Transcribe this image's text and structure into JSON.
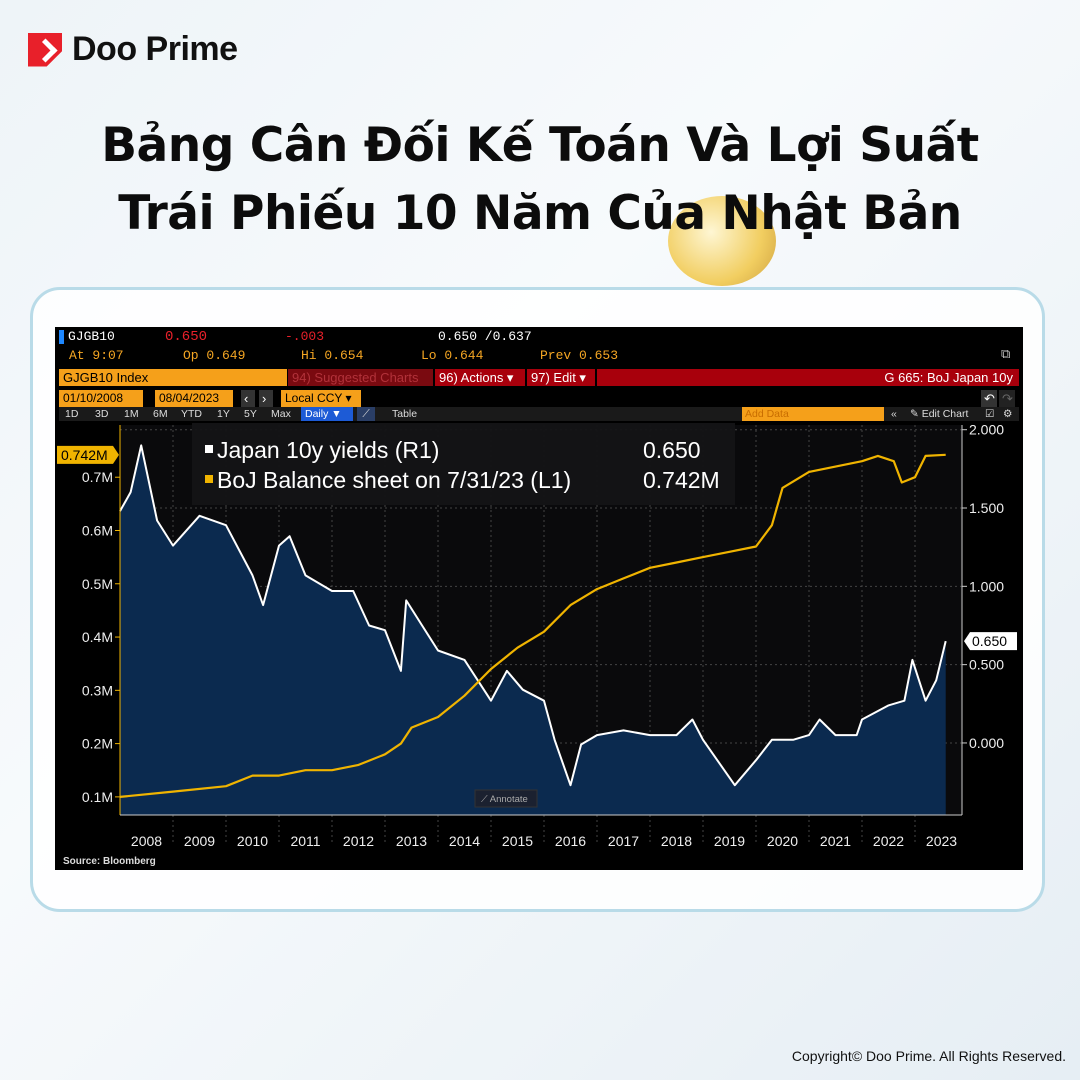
{
  "brand": {
    "name": "Doo Prime",
    "accent": "#e8202a"
  },
  "title": {
    "line1": "Bảng Cân Đối Kế Toán Và Lợi Suất",
    "line2": "Trái Phiếu 10 Năm Của Nhật Bản"
  },
  "terminal": {
    "ticker": "GJGB10",
    "last": "0.650",
    "change": "-.003",
    "bid_ask": "0.650 /0.637",
    "at": "At 9:07",
    "open": "Op 0.649",
    "high": "Hi 0.654",
    "low": "Lo 0.644",
    "prev": "Prev  0.653",
    "security": "GJGB10 Index",
    "suggested": "94) Suggested Charts",
    "actions": "96) Actions ▾",
    "edit": "97) Edit ▾",
    "chart_name": "G 665: BoJ Japan 10y",
    "start_date": "01/10/2008",
    "end_date": "08/04/2023",
    "currency": "Local CCY ▾",
    "periods": [
      "1D",
      "3D",
      "1M",
      "6M",
      "YTD",
      "1Y",
      "5Y",
      "Max"
    ],
    "frequency": "Daily ▼",
    "table": "Table",
    "add_data_placeholder": "Add Data",
    "edit_chart": "✎ Edit Chart",
    "annotate": "⟋ Annotate",
    "source": "Source: Bloomberg"
  },
  "chart_data": {
    "type": "line",
    "x_range": [
      2008.0,
      2023.9
    ],
    "xticks": [
      "2008",
      "2009",
      "2010",
      "2011",
      "2012",
      "2013",
      "2014",
      "2015",
      "2016",
      "2017",
      "2018",
      "2019",
      "2020",
      "2021",
      "2022",
      "2023"
    ],
    "legend": [
      "Japan 10y yields (R1)",
      "BoJ Balance sheet on 7/31/23 (L1)"
    ],
    "legend_values": [
      "0.650",
      "0.742M"
    ],
    "legend_placement": "top-left",
    "grid": true,
    "left_axis": {
      "range": [
        0.066,
        0.798
      ],
      "ticks": [
        "0.1M",
        "0.2M",
        "0.3M",
        "0.4M",
        "0.5M",
        "0.6M",
        "0.7M"
      ],
      "tick_values": [
        0.1,
        0.2,
        0.3,
        0.4,
        0.5,
        0.6,
        0.7
      ],
      "last_label": "0.742M"
    },
    "right_axis": {
      "range": [
        -0.46,
        2.03
      ],
      "ticks": [
        "0.000",
        "0.500",
        "1.000",
        "1.500",
        "2.000"
      ],
      "tick_values": [
        0,
        0.5,
        1,
        1.5,
        2
      ],
      "last_label": "0.650"
    },
    "series": [
      {
        "name": "Japan 10y yields (R1)",
        "axis": "right",
        "color": "#ffffff",
        "fill": "#0b2a4f",
        "x": [
          2008.0,
          2008.2,
          2008.4,
          2008.7,
          2009.0,
          2009.5,
          2010.0,
          2010.5,
          2010.7,
          2011.0,
          2011.2,
          2011.5,
          2012.0,
          2012.4,
          2012.7,
          2013.0,
          2013.3,
          2013.4,
          2013.7,
          2014.0,
          2014.5,
          2015.0,
          2015.3,
          2015.6,
          2016.0,
          2016.2,
          2016.5,
          2016.7,
          2017.0,
          2017.5,
          2018.0,
          2018.5,
          2018.8,
          2019.0,
          2019.6,
          2020.0,
          2020.3,
          2020.7,
          2021.0,
          2021.2,
          2021.5,
          2021.9,
          2022.0,
          2022.5,
          2022.8,
          2022.95,
          2023.2,
          2023.4,
          2023.58
        ],
        "values": [
          1.48,
          1.6,
          1.9,
          1.42,
          1.26,
          1.45,
          1.39,
          1.07,
          0.88,
          1.26,
          1.32,
          1.07,
          0.97,
          0.97,
          0.75,
          0.72,
          0.46,
          0.91,
          0.75,
          0.59,
          0.53,
          0.27,
          0.46,
          0.34,
          0.27,
          0.02,
          -0.27,
          -0.01,
          0.05,
          0.08,
          0.05,
          0.05,
          0.15,
          0.02,
          -0.27,
          -0.11,
          0.02,
          0.02,
          0.05,
          0.15,
          0.05,
          0.05,
          0.15,
          0.24,
          0.27,
          0.53,
          0.27,
          0.4,
          0.65
        ]
      },
      {
        "name": "BoJ Balance sheet on 7/31/23 (L1)",
        "axis": "left",
        "color": "#f0b400",
        "x": [
          2008.0,
          2009.0,
          2010.0,
          2010.5,
          2011.0,
          2011.5,
          2012.0,
          2012.5,
          2013.0,
          2013.3,
          2013.5,
          2014.0,
          2014.5,
          2015.0,
          2015.5,
          2016.0,
          2016.5,
          2017.0,
          2017.5,
          2018.0,
          2018.5,
          2019.0,
          2019.5,
          2020.0,
          2020.3,
          2020.5,
          2021.0,
          2021.5,
          2022.0,
          2022.3,
          2022.6,
          2022.75,
          2023.0,
          2023.2,
          2023.58
        ],
        "values": [
          0.1,
          0.11,
          0.12,
          0.14,
          0.14,
          0.15,
          0.15,
          0.16,
          0.18,
          0.2,
          0.23,
          0.25,
          0.29,
          0.34,
          0.38,
          0.41,
          0.46,
          0.49,
          0.51,
          0.53,
          0.54,
          0.55,
          0.56,
          0.57,
          0.61,
          0.68,
          0.71,
          0.72,
          0.73,
          0.74,
          0.73,
          0.69,
          0.7,
          0.74,
          0.742
        ]
      }
    ]
  },
  "footer": {
    "copyright": "Copyright© Doo Prime. All Rights Reserved."
  }
}
